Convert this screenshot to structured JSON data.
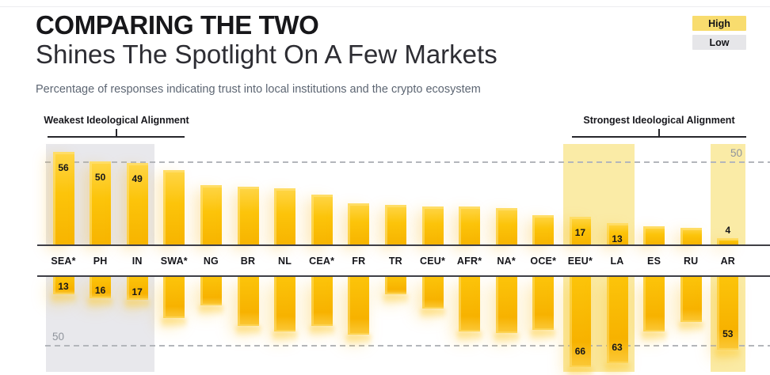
{
  "header": {
    "title": "COMPARING THE TWO",
    "subtitle": "Shines The Spotlight On A Few Markets",
    "caption": "Percentage of responses indicating trust into local institutions and the crypto ecosystem"
  },
  "legend": {
    "high_label": "High",
    "low_label": "Low",
    "high_color": "#f8dc6e",
    "low_color": "#e6e6e9"
  },
  "annotations": {
    "weakest": "Weakest Ideological Alignment",
    "strongest": "Strongest Ideological Alignment"
  },
  "axis": {
    "top_ref_label": "50",
    "bottom_ref_label": "50",
    "reference_value": 50
  },
  "chart_data": {
    "type": "bar",
    "variant": "diverging-vertical",
    "title": "COMPARING THE TWO — Shines The Spotlight On A Few Markets",
    "note": "Top bars rise above the market-label band; bottom bars hang below it; dashed reference lines mark 50 on both sides",
    "categories": [
      "SEA*",
      "PH",
      "IN",
      "SWA*",
      "NG",
      "BR",
      "NL",
      "CEA*",
      "FR",
      "TR",
      "CEU*",
      "AFR*",
      "NA*",
      "OCE*",
      "EEU*",
      "LA",
      "ES",
      "RU",
      "AR"
    ],
    "series": [
      {
        "name": "top",
        "values": [
          56,
          50,
          49,
          45,
          36,
          35,
          34,
          30,
          25,
          24,
          23,
          23,
          22,
          18,
          17,
          13,
          11,
          10,
          4
        ]
      },
      {
        "name": "bottom",
        "values": [
          13,
          16,
          17,
          30,
          21,
          36,
          40,
          36,
          42,
          13,
          23,
          40,
          41,
          39,
          66,
          63,
          40,
          33,
          53
        ]
      }
    ],
    "labeled_indices": [
      0,
      1,
      2,
      14,
      15,
      18
    ],
    "bar_color": "#fcc40a",
    "grid": "dashed reference line at 50 only",
    "highlight_bands": [
      {
        "group": "weakest",
        "from": "SEA*",
        "to": "IN",
        "color": "#e8e8ec"
      },
      {
        "group": "strongest",
        "from": "EEU*",
        "to": "LA",
        "color": "#faeba6"
      },
      {
        "group": "strongest",
        "from": "AR",
        "to": "AR",
        "color": "#faeba6"
      }
    ]
  }
}
